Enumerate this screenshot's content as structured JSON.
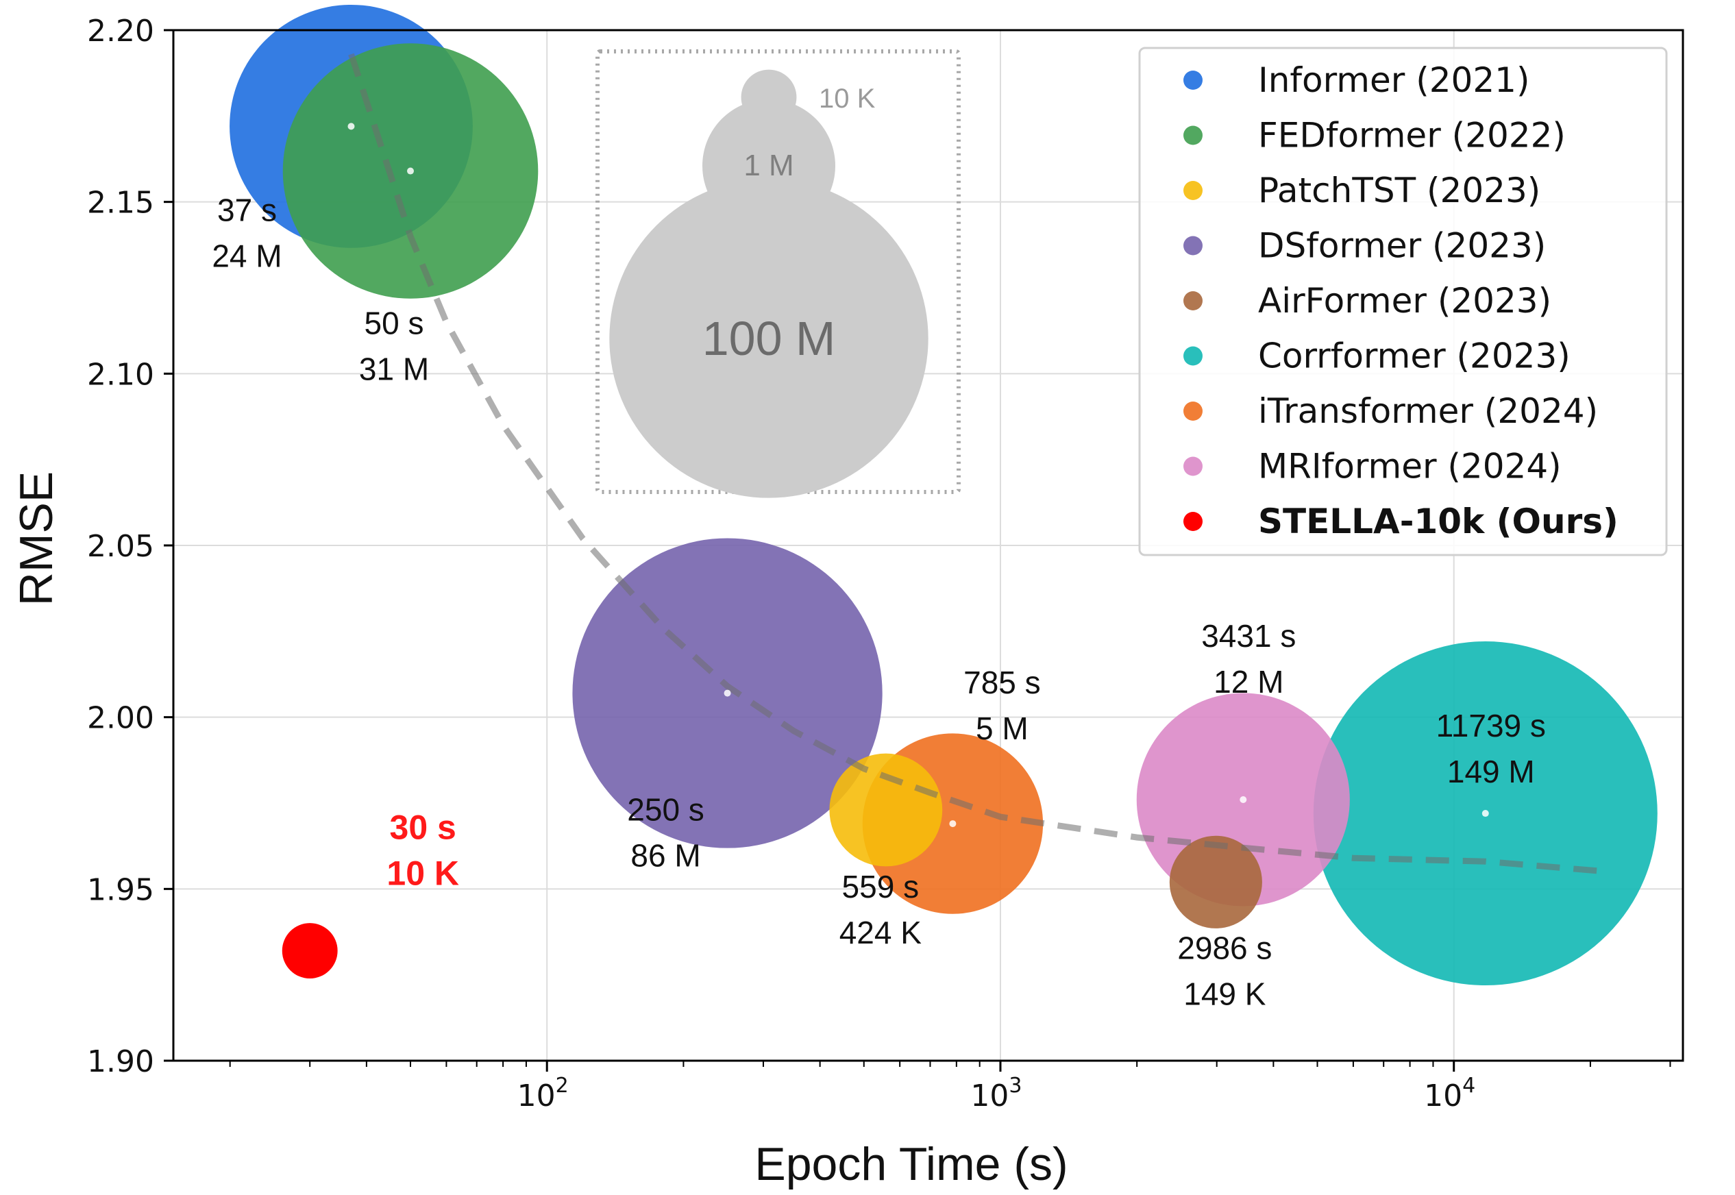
{
  "chart_data": {
    "type": "scatter",
    "subtype": "bubble",
    "xlabel": "Epoch Time (s)",
    "ylabel": "RMSE",
    "x_scale": "log",
    "xlim": [
      15,
      32000
    ],
    "ylim": [
      1.9,
      2.2
    ],
    "x_ticks": [
      {
        "value": 100,
        "base": "10",
        "exp": "2"
      },
      {
        "value": 1000,
        "base": "10",
        "exp": "3"
      },
      {
        "value": 10000,
        "base": "10",
        "exp": "4"
      }
    ],
    "y_ticks": [
      "1.90",
      "1.95",
      "2.00",
      "2.05",
      "2.10",
      "2.15",
      "2.20"
    ],
    "grid": true,
    "legend_position": "top-right",
    "series": [
      {
        "name": "Informer (2021)",
        "color": "#1f6fe0",
        "x": 37,
        "y": 2.172,
        "params_millions": 24,
        "time_label": "37 s",
        "size_label": "24 M"
      },
      {
        "name": "FEDformer (2022)",
        "color": "#3f9e4f",
        "x": 50,
        "y": 2.159,
        "params_millions": 31,
        "time_label": "50 s",
        "size_label": "31 M"
      },
      {
        "name": "PatchTST (2023)",
        "color": "#f6bd0b",
        "x": 559,
        "y": 1.973,
        "params_millions": 0.424,
        "time_label": "559 s",
        "size_label": "424 K"
      },
      {
        "name": "DSformer (2023)",
        "color": "#7564ad",
        "x": 250,
        "y": 2.007,
        "params_millions": 86,
        "time_label": "250 s",
        "size_label": "86 M"
      },
      {
        "name": "AirFormer (2023)",
        "color": "#a8683d",
        "x": 2986,
        "y": 1.952,
        "params_millions": 0.149,
        "time_label": "2986 s",
        "size_label": "149 K"
      },
      {
        "name": "Corrformer (2023)",
        "color": "#12b8b4",
        "x": 11739,
        "y": 1.972,
        "params_millions": 149,
        "time_label": "11739 s",
        "size_label": "149 M"
      },
      {
        "name": "iTransformer (2024)",
        "color": "#f07020",
        "x": 785,
        "y": 1.969,
        "params_millions": 5,
        "time_label": "785 s",
        "size_label": "5 M"
      },
      {
        "name": "MRIformer (2024)",
        "color": "#dc8ac8",
        "x": 3431,
        "y": 1.976,
        "params_millions": 12,
        "time_label": "3431 s",
        "size_label": "12 M"
      },
      {
        "name": "STELLA-10k (Ours)",
        "color": "#ff0000",
        "x": 30,
        "y": 1.932,
        "params_millions": 0.01,
        "time_label": "30 s",
        "size_label": "10 K",
        "highlight": true
      }
    ],
    "trend_line": {
      "style": "dashed",
      "points": [
        [
          37,
          2.193
        ],
        [
          50,
          2.14
        ],
        [
          60,
          2.115
        ],
        [
          80,
          2.085
        ],
        [
          120,
          2.052
        ],
        [
          180,
          2.026
        ],
        [
          250,
          2.009
        ],
        [
          350,
          1.996
        ],
        [
          500,
          1.985
        ],
        [
          700,
          1.978
        ],
        [
          1000,
          1.971
        ],
        [
          2000,
          1.965
        ],
        [
          3431,
          1.962
        ],
        [
          6000,
          1.959
        ],
        [
          11739,
          1.958
        ],
        [
          22000,
          1.955
        ]
      ]
    },
    "size_key": {
      "entries": [
        {
          "label": "10 K",
          "params_millions": 0.01
        },
        {
          "label": "1 M",
          "params_millions": 1
        },
        {
          "label": "100 M",
          "params_millions": 100
        }
      ]
    }
  }
}
